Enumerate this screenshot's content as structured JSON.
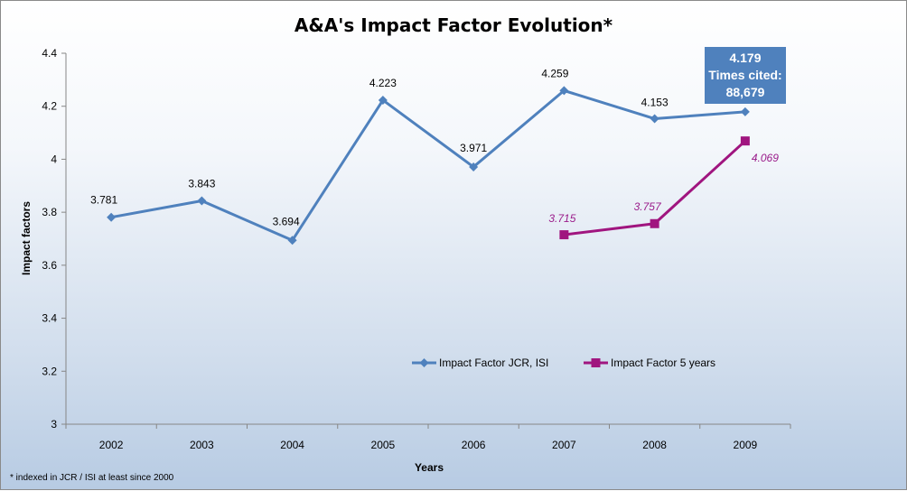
{
  "chart_data": {
    "type": "line",
    "title": "A&A's Impact Factor Evolution*",
    "xlabel": "Years",
    "ylabel": "Impact factors",
    "categories": [
      "2002",
      "2003",
      "2004",
      "2005",
      "2006",
      "2007",
      "2008",
      "2009"
    ],
    "ylim": [
      3,
      4.4
    ],
    "yticks": [
      "3",
      "3.2",
      "3.4",
      "3.6",
      "3.8",
      "4",
      "4.2",
      "4.4"
    ],
    "grid": false,
    "legend_position": "bottom-center",
    "series": [
      {
        "name": "Impact Factor JCR, ISI",
        "color": "#4f81bd",
        "marker": "diamond",
        "values": [
          3.781,
          3.843,
          3.694,
          4.223,
          3.971,
          4.259,
          4.153,
          4.179
        ],
        "labels": [
          "3.781",
          "3.843",
          "3.694",
          "4.223",
          "3.971",
          "4.259",
          "4.153",
          ""
        ]
      },
      {
        "name": "Impact Factor 5 years",
        "color": "#a0157f",
        "marker": "square",
        "values": [
          null,
          null,
          null,
          null,
          null,
          3.715,
          3.757,
          4.069
        ],
        "labels": [
          "",
          "",
          "",
          "",
          "",
          "3.715",
          "3.757",
          "4.069"
        ]
      }
    ],
    "callout": {
      "lines": [
        "4.179",
        "Times cited:",
        "88,679"
      ],
      "background": "#4f81bd"
    },
    "footnote": "* indexed in JCR / ISI at least since 2000"
  }
}
